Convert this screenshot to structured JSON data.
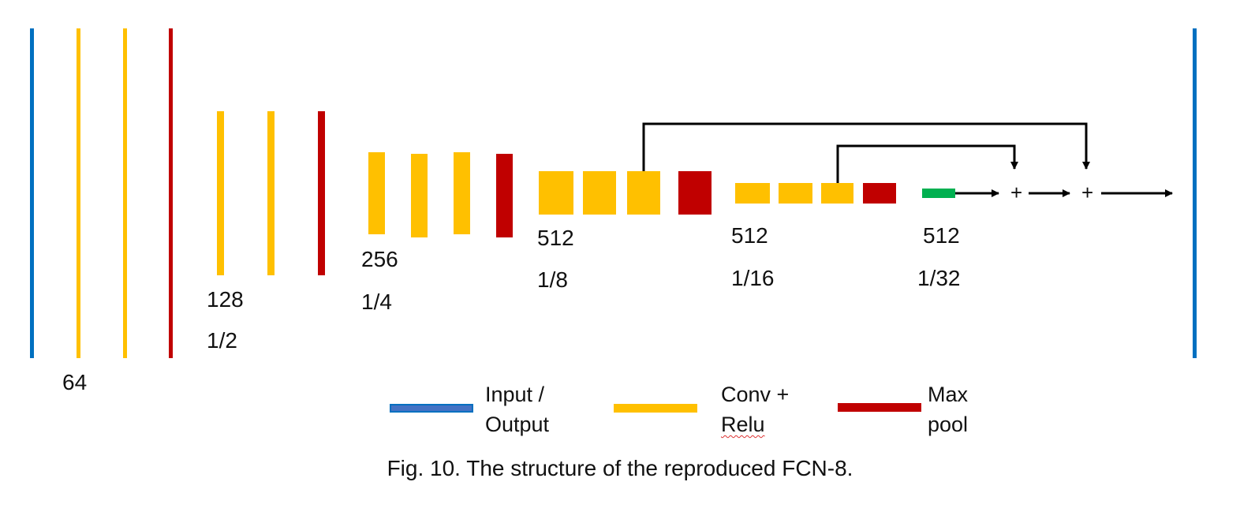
{
  "colors": {
    "io": "#0070c0",
    "conv": "#ffc000",
    "pool": "#c00000",
    "score": "#00b050",
    "arrow": "#000000"
  },
  "stages": {
    "s1": {
      "channels": "64"
    },
    "s2": {
      "channels": "128",
      "scale": "1/2"
    },
    "s3": {
      "channels": "256",
      "scale": "1/4"
    },
    "s4": {
      "channels": "512",
      "scale": "1/8"
    },
    "s5": {
      "channels": "512",
      "scale": "1/16"
    },
    "s6": {
      "channels": "512",
      "scale": "1/32"
    }
  },
  "plus_symbol": "+",
  "legend": {
    "io_line1": "Input /",
    "io_line2": "Output",
    "conv_line1": "Conv +",
    "conv_line2": "Relu",
    "pool_line1": "Max",
    "pool_line2": "pool"
  },
  "caption": "Fig. 10. The structure of the reproduced FCN-8."
}
